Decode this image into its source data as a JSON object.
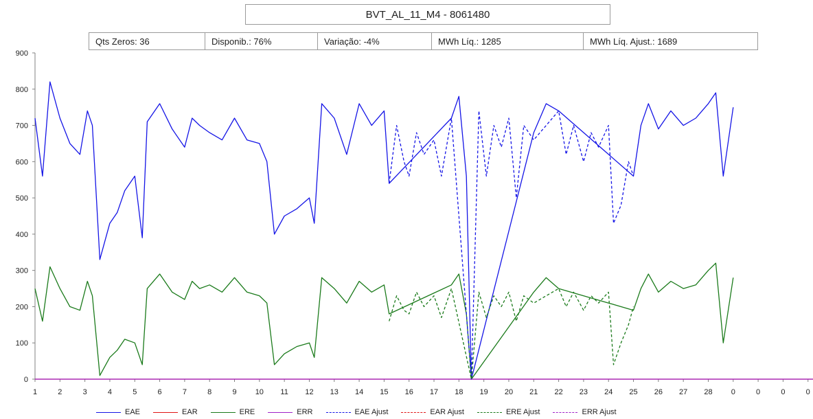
{
  "chart_data": {
    "type": "line",
    "title": "BVT_AL_11_M4 - 8061480",
    "stats": [
      "Qts Zeros: 36",
      "Disponib.: 76%",
      "Variação: -4%",
      "MWh Líq.: 1285",
      "MWh Líq. Ajust.: 1689"
    ],
    "ylim": [
      0,
      900
    ],
    "yticks": [
      "0",
      "100",
      "200",
      "300",
      "400",
      "500",
      "600",
      "700",
      "800",
      "900"
    ],
    "xticks": [
      "1",
      "2",
      "3",
      "4",
      "5",
      "6",
      "7",
      "8",
      "9",
      "10",
      "11",
      "12",
      "13",
      "14",
      "15",
      "16",
      "17",
      "18",
      "19",
      "20",
      "21",
      "22",
      "23",
      "24",
      "25",
      "26",
      "27",
      "28",
      "0",
      "0",
      "0",
      "0"
    ],
    "x_range": [
      1,
      32.2
    ],
    "grid": false,
    "legend_position": "bottom",
    "series": [
      {
        "name": "EAE",
        "color": "#1414e6",
        "dash": "solid",
        "x": [
          1,
          1.3,
          1.6,
          2,
          2.4,
          2.8,
          3.1,
          3.3,
          3.6,
          4,
          4.3,
          4.6,
          5,
          5.3,
          5.5,
          6,
          6.5,
          7,
          7.3,
          7.6,
          8,
          8.5,
          9,
          9.5,
          10,
          10.3,
          10.6,
          11,
          11.5,
          12,
          12.2,
          12.5,
          13,
          13.5,
          14,
          14.5,
          15,
          15.2,
          17.7,
          18,
          18.3,
          18.5,
          21,
          21.5,
          22,
          25,
          25.3,
          25.6,
          26,
          26.5,
          27,
          27.5,
          28,
          28.3,
          28.6,
          29
        ],
        "y": [
          720,
          560,
          820,
          720,
          650,
          620,
          740,
          700,
          330,
          430,
          460,
          520,
          560,
          390,
          710,
          760,
          690,
          640,
          720,
          700,
          680,
          660,
          720,
          660,
          650,
          600,
          400,
          450,
          470,
          500,
          430,
          760,
          720,
          620,
          760,
          700,
          740,
          540,
          720,
          780,
          560,
          0,
          680,
          760,
          740,
          560,
          700,
          760,
          690,
          740,
          700,
          720,
          760,
          790,
          560,
          750
        ]
      },
      {
        "name": "EAR",
        "color": "#e01414",
        "dash": "solid",
        "x": [
          1,
          32.2
        ],
        "y": [
          0,
          0
        ]
      },
      {
        "name": "ERE",
        "color": "#1a7a1a",
        "dash": "solid",
        "x": [
          1,
          1.3,
          1.6,
          2,
          2.4,
          2.8,
          3.1,
          3.3,
          3.6,
          4,
          4.3,
          4.6,
          5,
          5.3,
          5.5,
          6,
          6.5,
          7,
          7.3,
          7.6,
          8,
          8.5,
          9,
          9.5,
          10,
          10.3,
          10.6,
          11,
          11.5,
          12,
          12.2,
          12.5,
          13,
          13.5,
          14,
          14.5,
          15,
          15.2,
          17.7,
          18,
          18.3,
          18.5,
          21,
          21.5,
          22,
          25,
          25.3,
          25.6,
          26,
          26.5,
          27,
          27.5,
          28,
          28.3,
          28.6,
          29
        ],
        "y": [
          250,
          160,
          310,
          250,
          200,
          190,
          270,
          230,
          10,
          60,
          80,
          110,
          100,
          40,
          250,
          290,
          240,
          220,
          270,
          250,
          260,
          240,
          280,
          240,
          230,
          210,
          40,
          70,
          90,
          100,
          60,
          280,
          250,
          210,
          270,
          240,
          260,
          180,
          260,
          290,
          180,
          0,
          240,
          280,
          250,
          190,
          250,
          290,
          240,
          270,
          250,
          260,
          300,
          320,
          100,
          280
        ]
      },
      {
        "name": "ERR",
        "color": "#a020c8",
        "dash": "solid",
        "x": [
          1,
          32.2
        ],
        "y": [
          0,
          0
        ]
      },
      {
        "name": "EAE Ajust",
        "color": "#1414e6",
        "dash": "dashed",
        "x": [
          15.2,
          15.5,
          15.8,
          16,
          16.3,
          16.6,
          17,
          17.3,
          17.7,
          18.5,
          18.8,
          19.1,
          19.4,
          19.7,
          20,
          20.3,
          20.6,
          21,
          22,
          22.3,
          22.6,
          23,
          23.3,
          23.6,
          24,
          24.2,
          24.5,
          24.8,
          25
        ],
        "y": [
          540,
          700,
          600,
          560,
          680,
          620,
          660,
          560,
          720,
          0,
          740,
          560,
          700,
          640,
          720,
          500,
          700,
          660,
          740,
          620,
          700,
          600,
          680,
          640,
          700,
          430,
          480,
          600,
          560
        ]
      },
      {
        "name": "EAR Ajust",
        "color": "#e01414",
        "dash": "dashed",
        "x": [],
        "y": []
      },
      {
        "name": "ERE Ajust",
        "color": "#1a7a1a",
        "dash": "dashed",
        "x": [
          15.2,
          15.5,
          15.8,
          16,
          16.3,
          16.6,
          17,
          17.3,
          17.7,
          18.5,
          18.8,
          19.1,
          19.4,
          19.7,
          20,
          20.3,
          20.6,
          21,
          22,
          22.3,
          22.6,
          23,
          23.3,
          23.6,
          24,
          24.2,
          24.5,
          24.8,
          25
        ],
        "y": [
          160,
          230,
          190,
          180,
          240,
          200,
          230,
          170,
          250,
          0,
          240,
          170,
          230,
          200,
          240,
          160,
          230,
          210,
          250,
          200,
          240,
          190,
          230,
          210,
          240,
          40,
          100,
          150,
          200
        ]
      },
      {
        "name": "ERR Ajust",
        "color": "#a020c8",
        "dash": "dashed",
        "x": [],
        "y": []
      }
    ]
  }
}
